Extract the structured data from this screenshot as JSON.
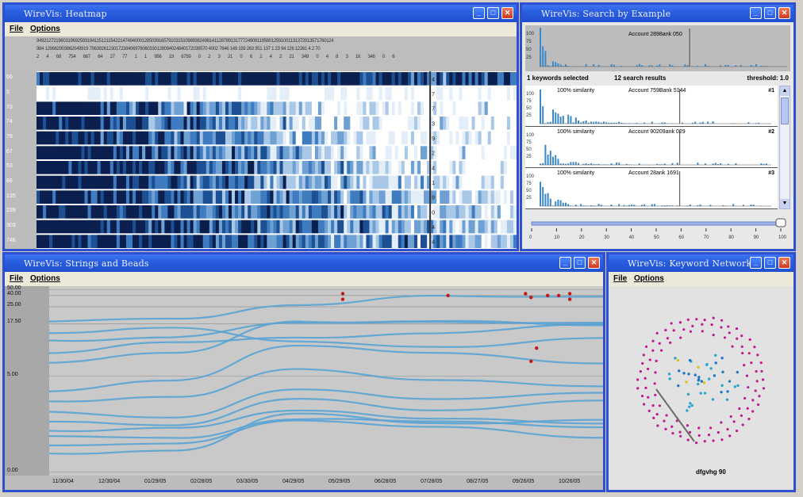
{
  "windows": {
    "heatmap": {
      "title": "WireVis: Heatmap",
      "menu": [
        "File",
        "Options"
      ],
      "header_rows": [
        "9492127219603196925931941151211542214749400012850391657910315109893824981411287891317772490811958012591001131372013571760124",
        "984 129662903862049919 7963926123017238406978060330128094024840172039570 4002 7846 149 159 263 351 137 1 23 94 126 12261 4 2 70",
        "2 4 68 754 667 64 27 77 1 1 956 19 6759 0 2 3 21 0 6 2 4 2 21 349 0 4 8 3 16 346 0 6"
      ],
      "row_labels": [
        "66",
        "5",
        "73",
        "74",
        "79",
        "67",
        "53",
        "86",
        "135",
        "239",
        "303",
        "746"
      ],
      "marker_labels": [
        "4",
        "7",
        "7",
        "3",
        "9",
        "2",
        "4",
        "1",
        "9",
        "0",
        "4",
        "4"
      ]
    },
    "search": {
      "title": "WireVis: Search by Example",
      "top_label": "Account 2898ank 050",
      "status_keywords": "1 keywords selected",
      "status_results": "12 search results",
      "status_threshold": "threshold: 1.0",
      "results": [
        {
          "similarity": "100% similarity",
          "account": "Account 759Bank 5144",
          "rank": "#1"
        },
        {
          "similarity": "100% similarity",
          "account": "Account 90209ank 029",
          "rank": "#2"
        },
        {
          "similarity": "100% similarity",
          "account": "Account 28ank 1691",
          "rank": "#3"
        }
      ],
      "y_ticks": [
        "100",
        "75",
        "50",
        "25"
      ],
      "slider_ticks": [
        "0",
        "10",
        "20",
        "30",
        "40",
        "50",
        "60",
        "70",
        "80",
        "90",
        "100"
      ],
      "slider_value": 1.0
    },
    "strings": {
      "title": "WireVis: Strings and Beads",
      "menu": [
        "File",
        "Options"
      ],
      "y_ticks": [
        "50.00",
        "40.00",
        "25.00",
        "17.50",
        "5.00",
        "0.00"
      ],
      "x_ticks": [
        "11/30/04",
        "12/30/04",
        "01/29/05",
        "02/28/05",
        "03/30/05",
        "04/29/05",
        "05/29/05",
        "06/28/05",
        "07/28/05",
        "08/27/05",
        "09/26/05",
        "10/26/05"
      ]
    },
    "network": {
      "title": "WireVis: Keyword Network",
      "menu": [
        "File",
        "Options"
      ],
      "highlight_label": "dfgvhg 90"
    }
  },
  "colors": {
    "title_blue": "#2a5ee0",
    "heat_dark": "#0a1f4d",
    "heat_mid": "#3f7bbf",
    "heat_light": "#a9c8e8",
    "string_line": "#5aa3d4",
    "bead_red": "#c41818",
    "node_magenta": "#c2188f",
    "node_blue": "#1c78c8"
  }
}
